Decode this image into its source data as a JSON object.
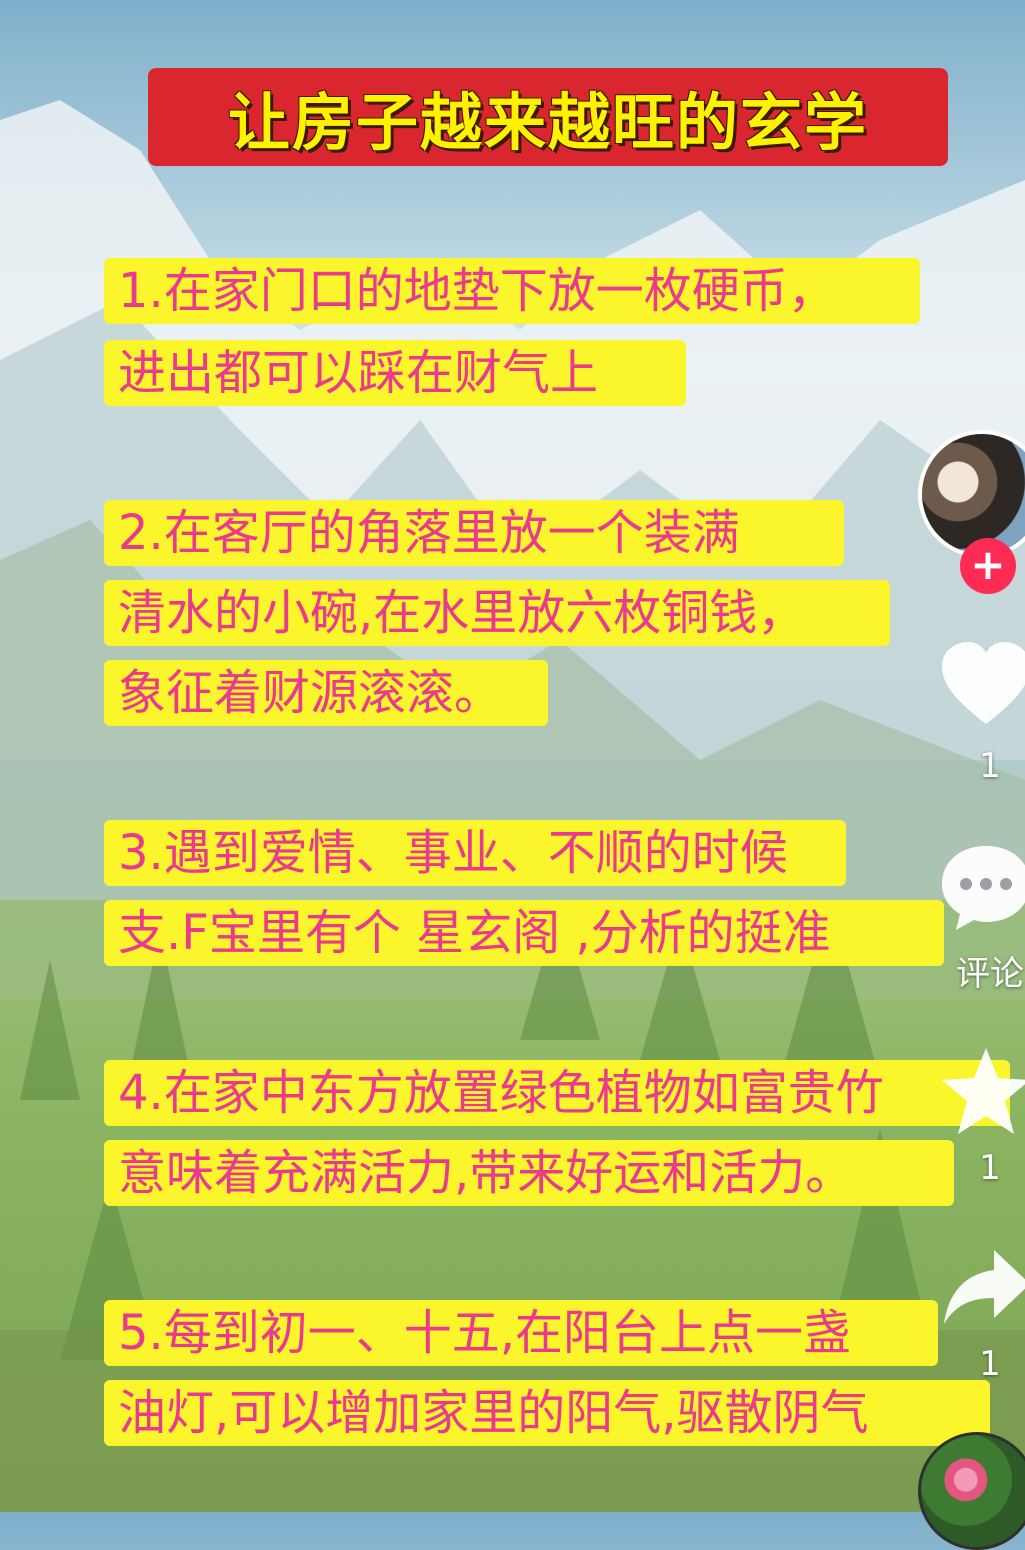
{
  "title": "让房子越来越旺的玄学",
  "tips": [
    {
      "lines": [
        "1.在家门口的地垫下放一枚硬币，",
        "进出都可以踩在财气上"
      ]
    },
    {
      "lines": [
        "2.在客厅的角落里放一个装满",
        "清水的小碗,在水里放六枚铜钱，",
        "象征着财源滚滚。"
      ]
    },
    {
      "lines": [
        "3.遇到爱情、事业、不顺的时候",
        "支.F宝里有个  星玄阁 ,分析的挺准"
      ]
    },
    {
      "lines": [
        "4.在家中东方放置绿色植物如富贵竹",
        "意味着充满活力,带来好运和活力。"
      ]
    },
    {
      "lines": [
        "5.每到初一、十五,在阳台上点一盏",
        "油灯,可以增加家里的阳气,驱散阴气"
      ]
    }
  ],
  "sidebar": {
    "follow_symbol": "+",
    "like_count": "1",
    "comment_label": "评论",
    "favorite_count": "1",
    "share_count": "1"
  },
  "colors": {
    "title_bg": "#d9262f",
    "title_text": "#fff200",
    "highlight": "#fbf52b",
    "tip_text": "#ea3a8e",
    "follow": "#fe2c55"
  }
}
